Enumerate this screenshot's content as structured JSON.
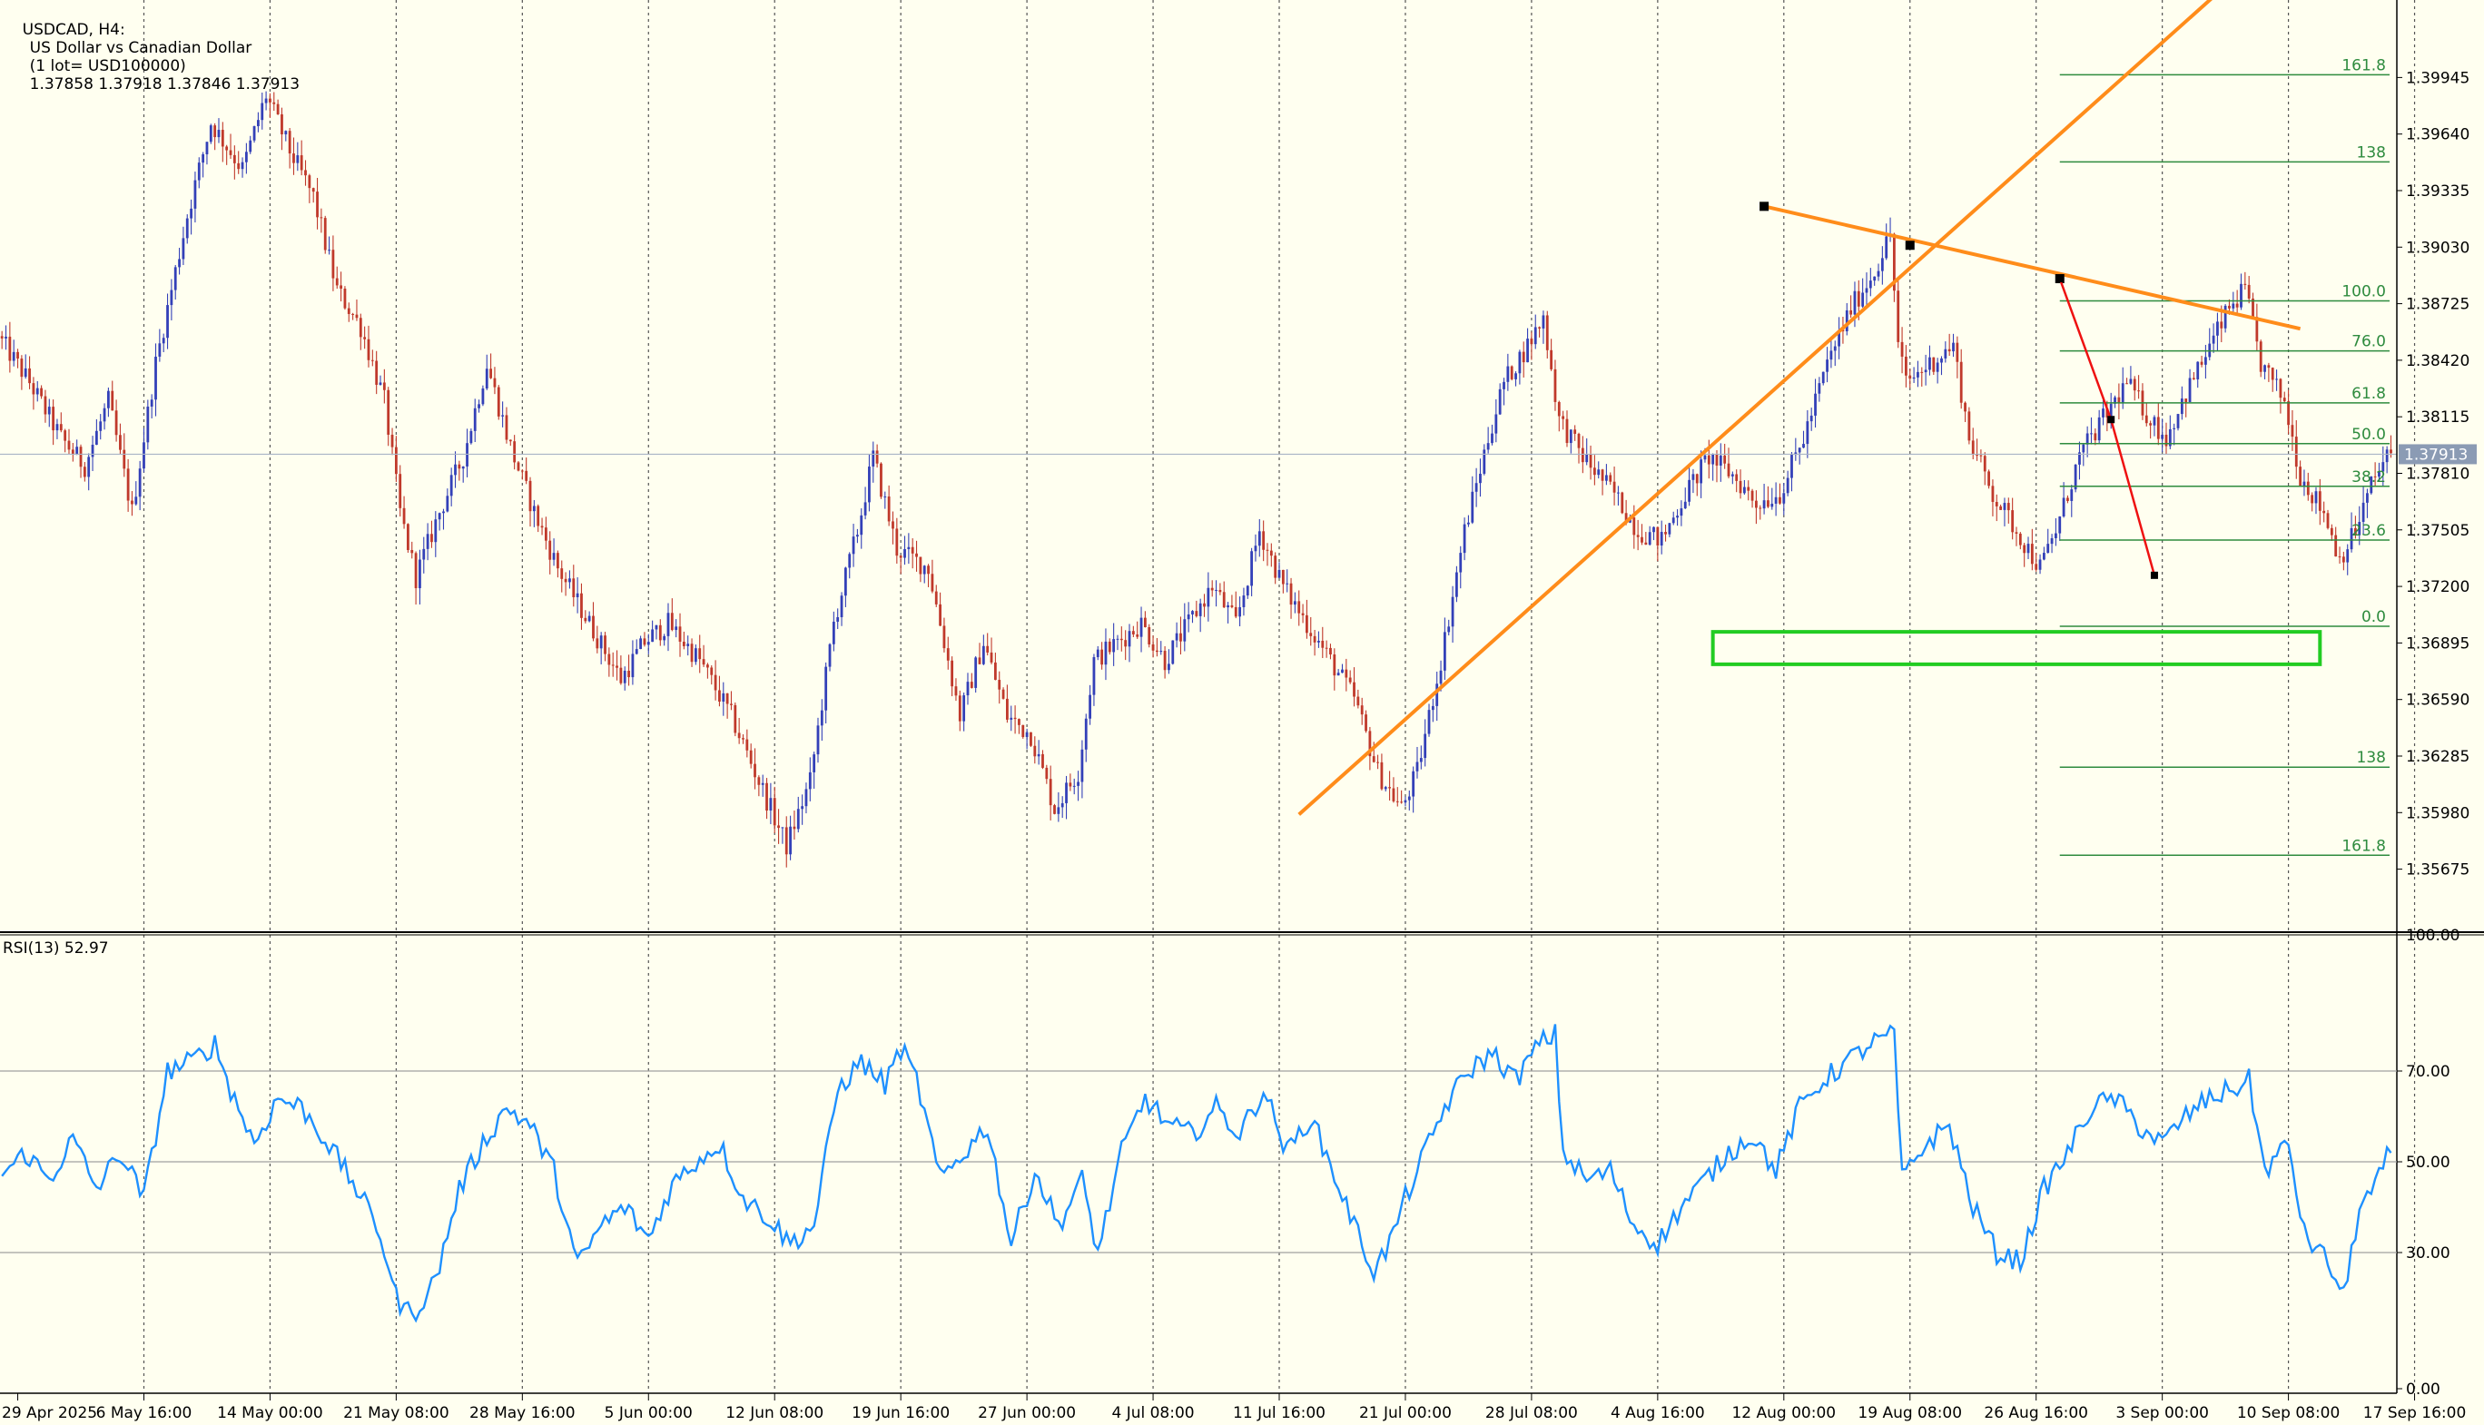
{
  "header": {
    "symbol_timeframe": "USDCAD, H4:",
    "description": "US Dollar vs Canadian Dollar",
    "lot": "(1 lot= USD100000)",
    "ohlc": "1.37858 1.37918 1.37846 1.37913"
  },
  "rsi_header": "RSI(13) 52.97",
  "colors": {
    "background": "#fffff0",
    "bull": "#3340b8",
    "bear": "#c0392b",
    "grid": "#555555",
    "fib": "#2e8b3e",
    "trendline": "#ff8c1a",
    "swing": "#ee1111",
    "zone": "#22cc22",
    "rsi": "#1e90ff",
    "price_tag": "#8b9bb4"
  },
  "chart_data": [
    {
      "type": "candlestick",
      "symbol": "USDCAD",
      "timeframe": "H4",
      "x_ticks": [
        "29 Apr 2025",
        "6 May 16:00",
        "14 May 00:00",
        "21 May 08:00",
        "28 May 16:00",
        "5 Jun 00:00",
        "12 Jun 08:00",
        "19 Jun 16:00",
        "27 Jun 00:00",
        "4 Jul 08:00",
        "11 Jul 16:00",
        "21 Jul 00:00",
        "28 Jul 08:00",
        "4 Aug 16:00",
        "12 Aug 00:00",
        "19 Aug 08:00",
        "26 Aug 16:00",
        "3 Sep 00:00",
        "10 Sep 08:00",
        "17 Sep 16:00"
      ],
      "y_ticks": [
        "1.39945",
        "1.39640",
        "1.39335",
        "1.39030",
        "1.38725",
        "1.38420",
        "1.38115",
        "1.37810",
        "1.37505",
        "1.37200",
        "1.36895",
        "1.36590",
        "1.36285",
        "1.35980",
        "1.35675"
      ],
      "ylim": [
        1.35345,
        1.40363
      ],
      "current_price": "1.37913",
      "price_path": [
        [
          0,
          1.3855
        ],
        [
          8,
          1.383
        ],
        [
          16,
          1.38
        ],
        [
          22,
          1.3785
        ],
        [
          28,
          1.382
        ],
        [
          34,
          1.376
        ],
        [
          40,
          1.384
        ],
        [
          48,
          1.392
        ],
        [
          54,
          1.397
        ],
        [
          62,
          1.3945
        ],
        [
          68,
          1.3985
        ],
        [
          74,
          1.3955
        ],
        [
          80,
          1.393
        ],
        [
          86,
          1.388
        ],
        [
          92,
          1.386
        ],
        [
          98,
          1.382
        ],
        [
          102,
          1.376
        ],
        [
          106,
          1.3725
        ],
        [
          112,
          1.376
        ],
        [
          118,
          1.379
        ],
        [
          124,
          1.384
        ],
        [
          130,
          1.3795
        ],
        [
          136,
          1.376
        ],
        [
          142,
          1.373
        ],
        [
          150,
          1.37
        ],
        [
          158,
          1.367
        ],
        [
          164,
          1.369
        ],
        [
          170,
          1.37
        ],
        [
          178,
          1.368
        ],
        [
          186,
          1.365
        ],
        [
          192,
          1.362
        ],
        [
          200,
          1.358
        ],
        [
          206,
          1.3615
        ],
        [
          212,
          1.37
        ],
        [
          218,
          1.375
        ],
        [
          222,
          1.379
        ],
        [
          228,
          1.374
        ],
        [
          236,
          1.373
        ],
        [
          240,
          1.369
        ],
        [
          244,
          1.365
        ],
        [
          250,
          1.369
        ],
        [
          256,
          1.365
        ],
        [
          262,
          1.364
        ],
        [
          268,
          1.36
        ],
        [
          274,
          1.362
        ],
        [
          278,
          1.368
        ],
        [
          284,
          1.369
        ],
        [
          290,
          1.37
        ],
        [
          296,
          1.368
        ],
        [
          302,
          1.37
        ],
        [
          308,
          1.372
        ],
        [
          314,
          1.37
        ],
        [
          320,
          1.375
        ],
        [
          326,
          1.372
        ],
        [
          332,
          1.37
        ],
        [
          338,
          1.368
        ],
        [
          344,
          1.366
        ],
        [
          350,
          1.362
        ],
        [
          356,
          1.36
        ],
        [
          360,
          1.362
        ],
        [
          366,
          1.368
        ],
        [
          372,
          1.375
        ],
        [
          378,
          1.38
        ],
        [
          382,
          1.383
        ],
        [
          388,
          1.385
        ],
        [
          392,
          1.3865
        ],
        [
          396,
          1.381
        ],
        [
          402,
          1.379
        ],
        [
          410,
          1.377
        ],
        [
          416,
          1.375
        ],
        [
          422,
          1.3745
        ],
        [
          428,
          1.377
        ],
        [
          434,
          1.379
        ],
        [
          440,
          1.378
        ],
        [
          446,
          1.3765
        ],
        [
          452,
          1.377
        ],
        [
          458,
          1.38
        ],
        [
          464,
          1.384
        ],
        [
          470,
          1.387
        ],
        [
          476,
          1.389
        ],
        [
          480,
          1.391
        ],
        [
          482,
          1.385
        ],
        [
          484,
          1.383
        ],
        [
          490,
          1.384
        ],
        [
          496,
          1.385
        ],
        [
          500,
          1.38
        ],
        [
          506,
          1.377
        ],
        [
          512,
          1.375
        ],
        [
          518,
          1.373
        ],
        [
          522,
          1.375
        ],
        [
          528,
          1.379
        ],
        [
          534,
          1.381
        ],
        [
          540,
          1.383
        ],
        [
          546,
          1.381
        ],
        [
          550,
          1.38
        ],
        [
          554,
          1.382
        ],
        [
          560,
          1.3845
        ],
        [
          566,
          1.387
        ],
        [
          570,
          1.388
        ],
        [
          574,
          1.384
        ],
        [
          580,
          1.382
        ],
        [
          584,
          1.378
        ],
        [
          590,
          1.376
        ],
        [
          594,
          1.3735
        ],
        [
          598,
          1.375
        ],
        [
          602,
          1.3775
        ],
        [
          606,
          1.379
        ]
      ],
      "fibonacci_levels": [
        {
          "label": "161.8",
          "price": 1.3996
        },
        {
          "label": "138",
          "price": 1.3949
        },
        {
          "label": "100.0",
          "price": 1.3874
        },
        {
          "label": "76.0",
          "price": 1.3847
        },
        {
          "label": "61.8",
          "price": 1.3819
        },
        {
          "label": "50.0",
          "price": 1.3797
        },
        {
          "label": "38.2",
          "price": 1.3774
        },
        {
          "label": "23.6",
          "price": 1.3745
        },
        {
          "label": "0.0",
          "price": 1.36985
        },
        {
          "label": "138",
          "price": 1.36225
        },
        {
          "label": "161.8",
          "price": 1.3575
        }
      ],
      "support_zone": {
        "x_start": 434,
        "x_end": 588,
        "price_top": 1.36955,
        "price_bottom": 1.3678
      }
    },
    {
      "type": "line",
      "name": "RSI(13) 52.97",
      "ylim": [
        0,
        100
      ],
      "y_ticks": [
        "100.00",
        "70.00",
        "50.00",
        "30.00",
        "0.00"
      ],
      "levels": [
        70,
        50,
        30
      ],
      "rsi_path": [
        [
          0,
          47
        ],
        [
          6,
          52
        ],
        [
          12,
          46
        ],
        [
          18,
          55
        ],
        [
          24,
          44
        ],
        [
          30,
          52
        ],
        [
          36,
          42
        ],
        [
          42,
          70
        ],
        [
          48,
          72
        ],
        [
          54,
          76
        ],
        [
          58,
          66
        ],
        [
          64,
          54
        ],
        [
          70,
          64
        ],
        [
          76,
          62
        ],
        [
          82,
          55
        ],
        [
          90,
          44
        ],
        [
          96,
          34
        ],
        [
          100,
          20
        ],
        [
          104,
          16
        ],
        [
          110,
          24
        ],
        [
          116,
          44
        ],
        [
          122,
          54
        ],
        [
          128,
          62
        ],
        [
          134,
          58
        ],
        [
          140,
          48
        ],
        [
          146,
          27
        ],
        [
          152,
          36
        ],
        [
          158,
          40
        ],
        [
          164,
          33
        ],
        [
          170,
          45
        ],
        [
          176,
          50
        ],
        [
          182,
          54
        ],
        [
          188,
          42
        ],
        [
          194,
          38
        ],
        [
          200,
          32
        ],
        [
          206,
          36
        ],
        [
          212,
          66
        ],
        [
          218,
          72
        ],
        [
          224,
          67
        ],
        [
          228,
          75
        ],
        [
          232,
          68
        ],
        [
          238,
          46
        ],
        [
          244,
          52
        ],
        [
          250,
          58
        ],
        [
          256,
          32
        ],
        [
          262,
          48
        ],
        [
          268,
          36
        ],
        [
          274,
          46
        ],
        [
          278,
          30
        ],
        [
          284,
          52
        ],
        [
          290,
          64
        ],
        [
          296,
          58
        ],
        [
          302,
          56
        ],
        [
          308,
          62
        ],
        [
          314,
          56
        ],
        [
          320,
          66
        ],
        [
          326,
          52
        ],
        [
          332,
          60
        ],
        [
          338,
          47
        ],
        [
          344,
          34
        ],
        [
          348,
          26
        ],
        [
          352,
          32
        ],
        [
          356,
          42
        ],
        [
          360,
          50
        ],
        [
          366,
          62
        ],
        [
          372,
          70
        ],
        [
          378,
          74
        ],
        [
          384,
          68
        ],
        [
          390,
          76
        ],
        [
          394,
          78
        ],
        [
          396,
          52
        ],
        [
          402,
          46
        ],
        [
          408,
          48
        ],
        [
          414,
          36
        ],
        [
          420,
          32
        ],
        [
          426,
          40
        ],
        [
          432,
          46
        ],
        [
          438,
          52
        ],
        [
          444,
          56
        ],
        [
          450,
          48
        ],
        [
          456,
          62
        ],
        [
          462,
          68
        ],
        [
          468,
          72
        ],
        [
          474,
          76
        ],
        [
          480,
          78
        ],
        [
          482,
          46
        ],
        [
          488,
          54
        ],
        [
          494,
          58
        ],
        [
          500,
          40
        ],
        [
          506,
          30
        ],
        [
          512,
          28
        ],
        [
          518,
          44
        ],
        [
          524,
          52
        ],
        [
          530,
          62
        ],
        [
          536,
          64
        ],
        [
          542,
          58
        ],
        [
          548,
          54
        ],
        [
          554,
          60
        ],
        [
          560,
          64
        ],
        [
          566,
          66
        ],
        [
          570,
          68
        ],
        [
          574,
          48
        ],
        [
          580,
          54
        ],
        [
          584,
          34
        ],
        [
          590,
          28
        ],
        [
          594,
          20
        ],
        [
          598,
          40
        ],
        [
          602,
          44
        ],
        [
          606,
          53
        ]
      ]
    }
  ]
}
